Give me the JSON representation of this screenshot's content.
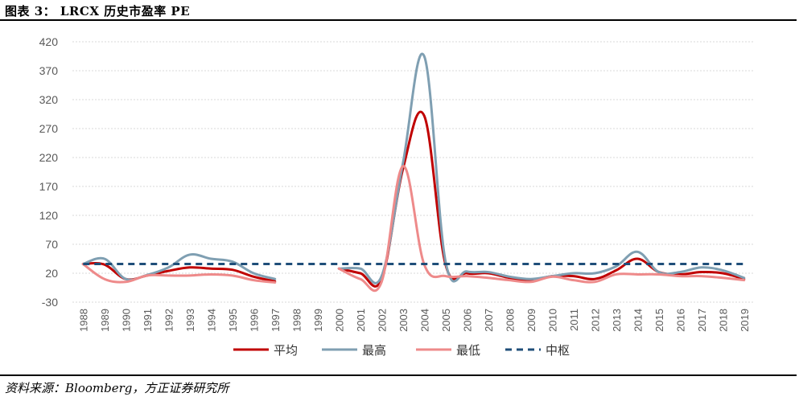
{
  "figure": {
    "title": "图表 3： LRCX 历史市盈率 PE",
    "source": "资料来源：Bloomberg，方正证券研究所"
  },
  "chart_data": {
    "type": "line",
    "x": [
      "1988",
      "1989",
      "1990",
      "1991",
      "1992",
      "1993",
      "1994",
      "1995",
      "1996",
      "1997",
      "1998",
      "1999",
      "2000",
      "2001",
      "2002",
      "2003",
      "2004",
      "2005",
      "2006",
      "2007",
      "2008",
      "2009",
      "2010",
      "2011",
      "2012",
      "2013",
      "2014",
      "2015",
      "2016",
      "2017",
      "2018",
      "2019"
    ],
    "ylim": [
      -30,
      420
    ],
    "yticks": [
      -30,
      20,
      70,
      120,
      170,
      220,
      270,
      320,
      370,
      420
    ],
    "grid": true,
    "legend_position": "bottom",
    "series": [
      {
        "name": "平均",
        "color": "#c00000",
        "dash": false,
        "values": [
          36,
          35,
          10,
          16,
          24,
          30,
          28,
          26,
          14,
          6,
          null,
          null,
          28,
          20,
          10,
          200,
          292,
          35,
          20,
          20,
          12,
          8,
          15,
          15,
          10,
          25,
          45,
          22,
          18,
          22,
          20,
          10
        ]
      },
      {
        "name": "最高",
        "color": "#7f9fb2",
        "dash": false,
        "values": [
          36,
          45,
          10,
          17,
          30,
          52,
          45,
          40,
          20,
          10,
          null,
          null,
          28,
          28,
          15,
          210,
          395,
          40,
          23,
          22,
          14,
          10,
          15,
          20,
          20,
          32,
          57,
          22,
          22,
          30,
          25,
          12
        ]
      },
      {
        "name": "最低",
        "color": "#ee8a8a",
        "dash": false,
        "values": [
          36,
          10,
          5,
          16,
          16,
          16,
          18,
          16,
          8,
          4,
          null,
          null,
          28,
          10,
          5,
          205,
          35,
          15,
          15,
          12,
          8,
          5,
          14,
          8,
          5,
          18,
          18,
          18,
          15,
          15,
          12,
          8
        ]
      },
      {
        "name": "中枢",
        "color": "#1f4e79",
        "dash": true,
        "values": [
          36,
          36,
          36,
          36,
          36,
          36,
          36,
          36,
          36,
          36,
          36,
          36,
          36,
          36,
          36,
          36,
          36,
          36,
          36,
          36,
          36,
          36,
          36,
          36,
          36,
          36,
          36,
          36,
          36,
          36,
          36,
          36
        ]
      }
    ]
  }
}
